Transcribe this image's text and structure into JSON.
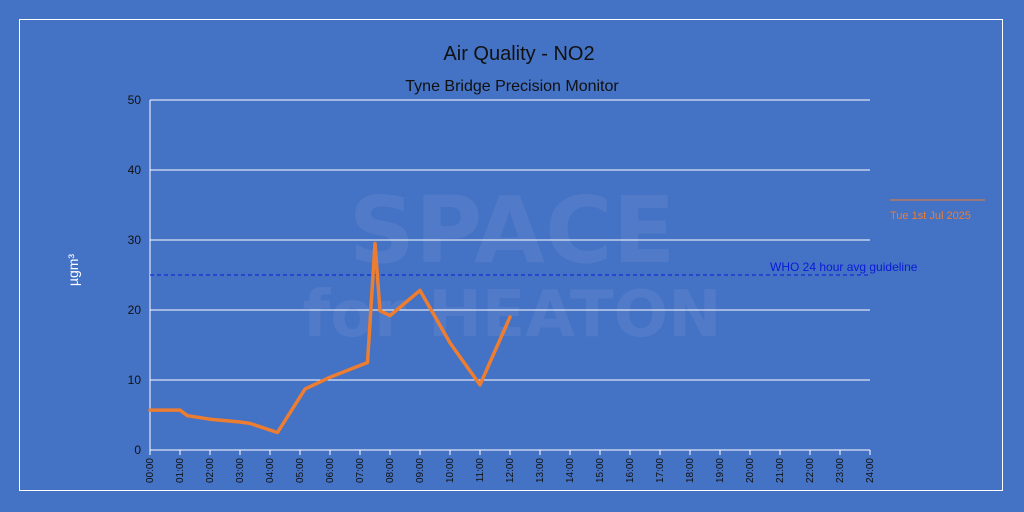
{
  "chart_data": {
    "type": "line",
    "title": "Air Quality - NO2",
    "subtitle": "Tyne Bridge Precision Monitor",
    "ylabel": "µgm³",
    "xlabel": "",
    "ylim": [
      0,
      50
    ],
    "yticks": [
      0,
      10,
      20,
      30,
      40,
      50
    ],
    "xlim": [
      "00:00",
      "24:00"
    ],
    "xticks": [
      "00:00",
      "01:00",
      "02:00",
      "03:00",
      "04:00",
      "05:00",
      "06:00",
      "07:00",
      "08:00",
      "09:00",
      "10:00",
      "11:00",
      "12:00",
      "13:00",
      "14:00",
      "15:00",
      "16:00",
      "17:00",
      "18:00",
      "19:00",
      "20:00",
      "21:00",
      "22:00",
      "23:00",
      "24:00"
    ],
    "grid": true,
    "legend_position": "right",
    "series": [
      {
        "name": "Tue 1st Jul 2025",
        "color": "#ed7d31",
        "points": [
          {
            "x": "00:00",
            "y": 5.7
          },
          {
            "x": "01:00",
            "y": 5.7
          },
          {
            "x": "01:15",
            "y": 4.9
          },
          {
            "x": "02:00",
            "y": 4.4
          },
          {
            "x": "03:00",
            "y": 4.0
          },
          {
            "x": "03:20",
            "y": 3.8
          },
          {
            "x": "04:15",
            "y": 2.5
          },
          {
            "x": "05:10",
            "y": 8.7
          },
          {
            "x": "06:00",
            "y": 10.4
          },
          {
            "x": "07:15",
            "y": 12.5
          },
          {
            "x": "07:30",
            "y": 29.5
          },
          {
            "x": "07:40",
            "y": 19.9
          },
          {
            "x": "08:00",
            "y": 19.2
          },
          {
            "x": "09:00",
            "y": 22.8
          },
          {
            "x": "10:00",
            "y": 15.3
          },
          {
            "x": "11:00",
            "y": 9.3
          },
          {
            "x": "12:00",
            "y": 19.0
          }
        ]
      }
    ],
    "reference_line": {
      "label": "WHO 24 hour avg guideline",
      "y": 25,
      "color": "#0a1ad6",
      "style": "dashed"
    },
    "gridline_color": "#ffffff",
    "watermark": {
      "text_line1": "SPACE",
      "text_line2": "for HEATON"
    }
  }
}
